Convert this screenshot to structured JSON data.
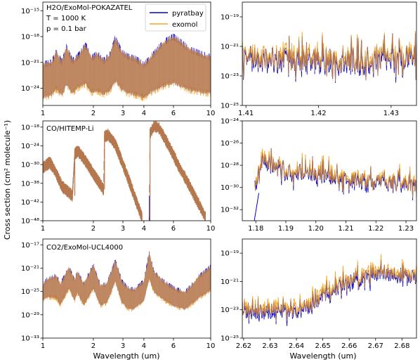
{
  "figure": {
    "ylabel": "Cross section (cm² molecule⁻¹)",
    "xlabel_left": "Wavelength (um)",
    "xlabel_right": "Wavelength (um)",
    "legend": [
      "pyratbay",
      "exomol"
    ],
    "colors": {
      "pyratbay": "#0000cc",
      "exomol": "#f5a623",
      "overlap": "#b5784e"
    }
  },
  "chart_data": [
    {
      "type": "line",
      "annotations": [
        "H2O/ExoMol-POKAZATEL",
        "T = 1000 K",
        "p = 0.1 bar"
      ],
      "xscale": "log",
      "yscale": "log",
      "xlim": [
        1,
        10
      ],
      "ylim": [
        1e-26,
        1e-14
      ],
      "xticks": [
        1,
        2,
        3,
        4,
        6,
        10
      ],
      "xtick_labels": [
        "1",
        "2",
        "3",
        "4",
        "6",
        "10"
      ],
      "yticks": [
        1e-24,
        1e-21,
        1e-18,
        1e-15
      ],
      "ytick_labels": [
        "10⁻²⁴",
        "10⁻²¹",
        "10⁻¹⁸",
        "10⁻¹⁵"
      ],
      "legend_placement": "top-center",
      "series": [
        {
          "name": "pyratbay"
        },
        {
          "name": "exomol"
        }
      ],
      "envelope_upper": [
        [
          1.0,
          -21
        ],
        [
          1.13,
          -20.8
        ],
        [
          1.2,
          -19.6
        ],
        [
          1.3,
          -20.8
        ],
        [
          1.38,
          -19
        ],
        [
          1.5,
          -20.6
        ],
        [
          1.6,
          -20.2
        ],
        [
          1.8,
          -18.8
        ],
        [
          1.95,
          -20.3
        ],
        [
          2.1,
          -19.8
        ],
        [
          2.3,
          -20.6
        ],
        [
          2.5,
          -20
        ],
        [
          2.7,
          -18
        ],
        [
          2.95,
          -19.6
        ],
        [
          3.2,
          -20.1
        ],
        [
          3.6,
          -20.4
        ],
        [
          4.0,
          -21.1
        ],
        [
          4.4,
          -20.2
        ],
        [
          5.0,
          -18.9
        ],
        [
          5.5,
          -18.2
        ],
        [
          6.0,
          -17.8
        ],
        [
          6.5,
          -18.3
        ],
        [
          7.5,
          -19.3
        ],
        [
          9.0,
          -19.9
        ],
        [
          10.0,
          -20.2
        ]
      ],
      "envelope_lower": [
        [
          1.0,
          -25.3
        ],
        [
          1.13,
          -25
        ],
        [
          1.2,
          -24.3
        ],
        [
          1.3,
          -25
        ],
        [
          1.38,
          -23.8
        ],
        [
          1.5,
          -24.8
        ],
        [
          1.6,
          -24.2
        ],
        [
          1.8,
          -23.7
        ],
        [
          1.95,
          -24.7
        ],
        [
          2.1,
          -24.5
        ],
        [
          2.3,
          -24.9
        ],
        [
          2.5,
          -24.5
        ],
        [
          2.7,
          -23.4
        ],
        [
          2.95,
          -24.3
        ],
        [
          3.2,
          -24.8
        ],
        [
          3.6,
          -25
        ],
        [
          4.0,
          -25.3
        ],
        [
          4.4,
          -24.7
        ],
        [
          5.0,
          -24.1
        ],
        [
          5.5,
          -23.8
        ],
        [
          6.0,
          -23.6
        ],
        [
          6.5,
          -23.9
        ],
        [
          7.5,
          -24.4
        ],
        [
          9.0,
          -24.7
        ],
        [
          10.0,
          -24.8
        ]
      ]
    },
    {
      "type": "line",
      "xscale": "linear",
      "yscale": "log",
      "xlim": [
        1.4095,
        1.4335
      ],
      "ylim": [
        1e-25,
        1e-18
      ],
      "xticks": [
        1.41,
        1.42,
        1.43
      ],
      "xtick_labels": [
        "1.41",
        "1.42",
        "1.43"
      ],
      "yticks": [
        1e-25,
        1e-23,
        1e-21,
        1e-19
      ],
      "ytick_labels": [
        "10⁻²⁵",
        "10⁻²³",
        "10⁻²¹",
        "10⁻¹⁹"
      ],
      "series": [
        {
          "name": "pyratbay"
        },
        {
          "name": "exomol"
        }
      ],
      "baseline_log": [
        [
          1.4095,
          -21.9
        ],
        [
          1.42,
          -22.0
        ],
        [
          1.4335,
          -21.8
        ]
      ],
      "spread": 1.6
    },
    {
      "type": "line",
      "annotations": [
        "CO/HITEMP-Li"
      ],
      "xscale": "log",
      "yscale": "log",
      "xlim": [
        1,
        10
      ],
      "ylim": [
        1e-48,
        1e-16
      ],
      "xticks": [
        1,
        2,
        3,
        4,
        6,
        10
      ],
      "xtick_labels": [
        "1",
        "2",
        "3",
        "4",
        "6",
        "10"
      ],
      "yticks": [
        1e-48,
        1e-42,
        1e-36,
        1e-30,
        1e-24,
        1e-18
      ],
      "ytick_labels": [
        "10⁻⁴⁸",
        "10⁻⁴²",
        "10⁻³⁶",
        "10⁻³⁰",
        "10⁻²⁴",
        "10⁻¹⁸"
      ],
      "series": [
        {
          "name": "pyratbay"
        },
        {
          "name": "exomol"
        }
      ],
      "segments": [
        [
          [
            1.0,
            -31
          ],
          [
            1.1,
            -29.3
          ],
          [
            1.18,
            -32
          ],
          [
            1.3,
            -37
          ],
          [
            1.5,
            -40
          ]
        ],
        [
          [
            1.5,
            -40
          ],
          [
            1.55,
            -26.5
          ],
          [
            1.62,
            -25.7
          ],
          [
            1.75,
            -28
          ],
          [
            2.0,
            -33
          ],
          [
            2.3,
            -38
          ]
        ],
        [
          [
            2.3,
            -38
          ],
          [
            2.33,
            -21
          ],
          [
            2.45,
            -20.5
          ],
          [
            2.7,
            -23.5
          ],
          [
            3.0,
            -30
          ],
          [
            3.5,
            -40
          ],
          [
            3.9,
            -47
          ]
        ],
        [
          [
            4.3,
            -48
          ],
          [
            4.35,
            -20
          ],
          [
            4.6,
            -17.7
          ],
          [
            4.9,
            -18.2
          ],
          [
            5.5,
            -23
          ],
          [
            6.5,
            -31
          ],
          [
            8.0,
            -40
          ],
          [
            9.3,
            -47
          ]
        ]
      ],
      "band_width": 2.0
    },
    {
      "type": "line",
      "xscale": "linear",
      "yscale": "log",
      "xlim": [
        1.1755,
        1.2335
      ],
      "ylim": [
        1e-33,
        1e-24
      ],
      "xticks": [
        1.18,
        1.19,
        1.2,
        1.21,
        1.22,
        1.23
      ],
      "xtick_labels": [
        "1.18",
        "1.19",
        "1.20",
        "1.21",
        "1.22",
        "1.23"
      ],
      "yticks": [
        1e-32,
        1e-30,
        1e-28,
        1e-26,
        1e-24
      ],
      "ytick_labels": [
        "10⁻³²",
        "10⁻³⁰",
        "10⁻²⁸",
        "10⁻²⁶",
        "10⁻²⁴"
      ],
      "series": [
        {
          "name": "pyratbay"
        },
        {
          "name": "exomol"
        }
      ],
      "baseline_log": [
        [
          1.1795,
          -30.2
        ],
        [
          1.182,
          -27.6
        ],
        [
          1.19,
          -28.6
        ],
        [
          1.2,
          -28.7
        ],
        [
          1.215,
          -29.5
        ],
        [
          1.2335,
          -29.8
        ]
      ],
      "spread": 1.4
    },
    {
      "type": "line",
      "annotations": [
        "CO2/ExoMol-UCL4000"
      ],
      "xscale": "log",
      "yscale": "log",
      "xlim": [
        1,
        10
      ],
      "ylim": [
        1e-33,
        1e-16
      ],
      "xticks": [
        1,
        2,
        3,
        4,
        6,
        10
      ],
      "xtick_labels": [
        "1",
        "2",
        "3",
        "4",
        "6",
        "10"
      ],
      "yticks": [
        1e-33,
        1e-29,
        1e-25,
        1e-21,
        1e-17
      ],
      "ytick_labels": [
        "10⁻³³",
        "10⁻²⁹",
        "10⁻²⁵",
        "10⁻²¹",
        "10⁻¹⁷"
      ],
      "series": [
        {
          "name": "pyratbay"
        },
        {
          "name": "exomol"
        }
      ],
      "envelope_upper": [
        [
          1.0,
          -23.8
        ],
        [
          1.05,
          -22.8
        ],
        [
          1.2,
          -22.1
        ],
        [
          1.27,
          -23.5
        ],
        [
          1.43,
          -20.7
        ],
        [
          1.55,
          -22.9
        ],
        [
          1.6,
          -21.4
        ],
        [
          1.75,
          -23.5
        ],
        [
          2.0,
          -20.3
        ],
        [
          2.2,
          -23.8
        ],
        [
          2.4,
          -23.5
        ],
        [
          2.7,
          -19.5
        ],
        [
          2.95,
          -23
        ],
        [
          3.2,
          -24.2
        ],
        [
          3.5,
          -24.5
        ],
        [
          4.0,
          -23
        ],
        [
          4.3,
          -18.2
        ],
        [
          4.6,
          -21.5
        ],
        [
          5.2,
          -23
        ],
        [
          6.0,
          -24.2
        ],
        [
          7.0,
          -25
        ],
        [
          8.5,
          -22.2
        ],
        [
          10.0,
          -20.5
        ]
      ],
      "envelope_lower": [
        [
          1.0,
          -26.8
        ],
        [
          1.05,
          -26.2
        ],
        [
          1.2,
          -26.3
        ],
        [
          1.27,
          -27.5
        ],
        [
          1.43,
          -24.7
        ],
        [
          1.55,
          -26.8
        ],
        [
          1.6,
          -25.4
        ],
        [
          1.75,
          -27.5
        ],
        [
          2.0,
          -24.7
        ],
        [
          2.2,
          -27.6
        ],
        [
          2.4,
          -27.2
        ],
        [
          2.7,
          -23.5
        ],
        [
          2.95,
          -27
        ],
        [
          3.2,
          -28.2
        ],
        [
          3.5,
          -28.2
        ],
        [
          4.0,
          -26.8
        ],
        [
          4.3,
          -23
        ],
        [
          4.6,
          -25.3
        ],
        [
          5.2,
          -26.6
        ],
        [
          6.0,
          -27.7
        ],
        [
          7.0,
          -28.3
        ],
        [
          8.5,
          -26.3
        ],
        [
          10.0,
          -25
        ]
      ]
    },
    {
      "type": "line",
      "xscale": "linear",
      "yscale": "log",
      "xlim": [
        2.6195,
        2.6855
      ],
      "ylim": [
        1e-25,
        1e-18
      ],
      "xticks": [
        2.62,
        2.63,
        2.64,
        2.65,
        2.66,
        2.67,
        2.68
      ],
      "xtick_labels": [
        "2.62",
        "2.63",
        "2.64",
        "2.65",
        "2.66",
        "2.67",
        "2.68"
      ],
      "yticks": [
        1e-25,
        1e-23,
        1e-21,
        1e-19
      ],
      "ytick_labels": [
        "10⁻²⁵",
        "10⁻²³",
        "10⁻²¹",
        "10⁻¹⁹"
      ],
      "series": [
        {
          "name": "pyratbay"
        },
        {
          "name": "exomol"
        }
      ],
      "baseline_log": [
        [
          2.6195,
          -23.1
        ],
        [
          2.64,
          -23.0
        ],
        [
          2.646,
          -22.6
        ],
        [
          2.656,
          -21.3
        ],
        [
          2.67,
          -20.4
        ],
        [
          2.6855,
          -20.7
        ]
      ],
      "spread": 0.9
    }
  ]
}
